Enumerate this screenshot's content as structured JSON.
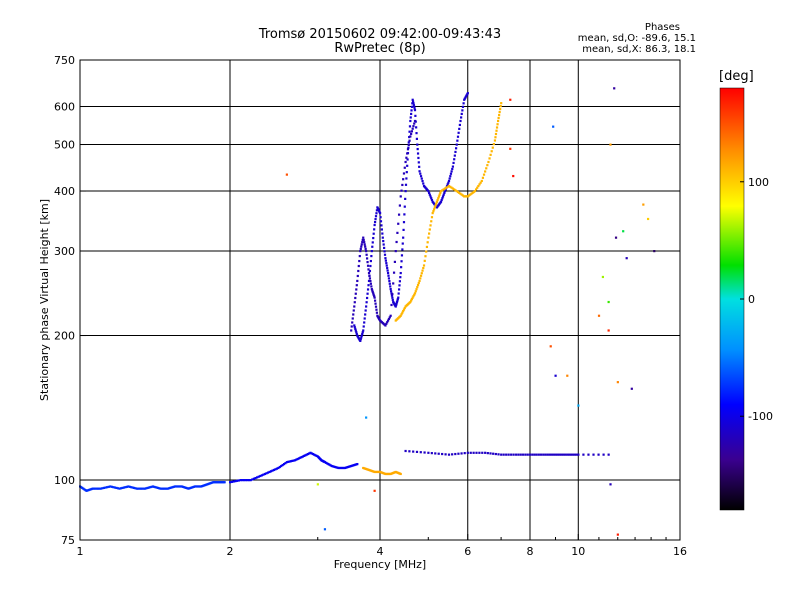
{
  "header": {
    "title_line1": "Tromsø 20150602 09:42:00-09:43:43",
    "title_line2": "RwPretec (8p)"
  },
  "stats": {
    "heading": "Phases",
    "o_line": "mean, sd,O: -89.6, 15.1",
    "x_line": "mean, sd,X:  86.3, 18.1"
  },
  "colorbar": {
    "unit": "[deg]",
    "ticks": [
      {
        "value": 100,
        "label": "100"
      },
      {
        "value": 0,
        "label": "0"
      },
      {
        "value": -100,
        "label": "-100"
      }
    ],
    "range": [
      -180,
      180
    ]
  },
  "chart_data": {
    "type": "scatter",
    "title": "Tromsø 20150602 09:42:00-09:43:43",
    "subtitle": "RwPretec (8p)",
    "xlabel": "Frequency [MHz]",
    "ylabel": "Stationary phase Virtual Height [km]",
    "xscale": "log",
    "yscale": "log",
    "xlim": [
      1,
      16
    ],
    "ylim": [
      75,
      750
    ],
    "xticks": [
      1,
      2,
      4,
      6,
      8,
      10,
      16
    ],
    "xtick_labels": [
      "1",
      "2",
      "4",
      "6",
      "8",
      "10",
      "16"
    ],
    "yticks": [
      75,
      100,
      200,
      300,
      400,
      500,
      600,
      750
    ],
    "ytick_labels": [
      "75",
      "100",
      "200",
      "300",
      "400",
      "500",
      "600",
      "750"
    ],
    "grid": true,
    "color_encoding": "phase [deg]",
    "traces": [
      {
        "phase": -75,
        "points": [
          [
            1.0,
            97
          ],
          [
            1.03,
            95
          ],
          [
            1.06,
            96
          ],
          [
            1.1,
            96
          ],
          [
            1.15,
            97
          ],
          [
            1.2,
            96
          ],
          [
            1.25,
            97
          ],
          [
            1.3,
            96
          ],
          [
            1.35,
            96
          ],
          [
            1.4,
            97
          ],
          [
            1.45,
            96
          ],
          [
            1.5,
            96
          ],
          [
            1.55,
            97
          ],
          [
            1.6,
            97
          ],
          [
            1.65,
            96
          ],
          [
            1.7,
            97
          ],
          [
            1.75,
            97
          ],
          [
            1.8,
            98
          ],
          [
            1.85,
            99
          ],
          [
            1.9,
            99
          ],
          [
            1.95,
            99
          ]
        ]
      },
      {
        "phase": -95,
        "points": [
          [
            2.0,
            99
          ],
          [
            2.1,
            100
          ],
          [
            2.2,
            100
          ],
          [
            2.3,
            102
          ],
          [
            2.4,
            104
          ],
          [
            2.5,
            106
          ],
          [
            2.6,
            109
          ],
          [
            2.7,
            110
          ],
          [
            2.8,
            112
          ],
          [
            2.9,
            114
          ],
          [
            3.0,
            112
          ],
          [
            3.05,
            110
          ],
          [
            3.1,
            109
          ],
          [
            3.2,
            107
          ],
          [
            3.3,
            106
          ],
          [
            3.4,
            106
          ],
          [
            3.5,
            107
          ],
          [
            3.6,
            108
          ]
        ]
      },
      {
        "phase": -110,
        "points": [
          [
            3.55,
            210
          ],
          [
            3.6,
            200
          ],
          [
            3.65,
            195
          ],
          [
            3.7,
            205
          ],
          [
            3.75,
            230
          ],
          [
            3.8,
            260
          ],
          [
            3.85,
            300
          ],
          [
            3.9,
            340
          ],
          [
            3.95,
            370
          ],
          [
            4.0,
            360
          ],
          [
            4.05,
            320
          ],
          [
            4.1,
            290
          ],
          [
            4.15,
            270
          ],
          [
            4.2,
            250
          ],
          [
            4.25,
            235
          ],
          [
            4.3,
            230
          ],
          [
            4.35,
            240
          ],
          [
            4.4,
            270
          ],
          [
            4.45,
            320
          ],
          [
            4.5,
            400
          ],
          [
            4.55,
            480
          ],
          [
            4.6,
            560
          ],
          [
            4.65,
            620
          ],
          [
            4.7,
            590
          ],
          [
            4.75,
            500
          ],
          [
            4.8,
            440
          ],
          [
            4.9,
            410
          ],
          [
            5.0,
            400
          ],
          [
            5.1,
            380
          ],
          [
            5.2,
            370
          ],
          [
            5.3,
            380
          ],
          [
            5.4,
            400
          ],
          [
            5.5,
            420
          ],
          [
            5.6,
            450
          ],
          [
            5.7,
            500
          ],
          [
            5.8,
            560
          ],
          [
            5.9,
            620
          ],
          [
            6.0,
            640
          ]
        ]
      },
      {
        "phase": -120,
        "points": [
          [
            3.5,
            205
          ],
          [
            3.55,
            230
          ],
          [
            3.6,
            260
          ],
          [
            3.65,
            300
          ],
          [
            3.7,
            320
          ],
          [
            3.75,
            300
          ],
          [
            3.8,
            270
          ],
          [
            3.85,
            250
          ],
          [
            3.9,
            240
          ],
          [
            3.95,
            220
          ],
          [
            4.0,
            215
          ],
          [
            4.1,
            210
          ],
          [
            4.2,
            220
          ],
          [
            4.3,
            300
          ],
          [
            4.4,
            390
          ],
          [
            4.5,
            460
          ],
          [
            4.6,
            520
          ],
          [
            4.7,
            560
          ]
        ]
      },
      {
        "phase": 110,
        "points": [
          [
            4.3,
            215
          ],
          [
            4.4,
            220
          ],
          [
            4.5,
            230
          ],
          [
            4.6,
            235
          ],
          [
            4.7,
            245
          ],
          [
            4.8,
            260
          ],
          [
            4.9,
            280
          ],
          [
            5.0,
            320
          ],
          [
            5.1,
            360
          ],
          [
            5.2,
            380
          ],
          [
            5.3,
            400
          ],
          [
            5.5,
            410
          ],
          [
            5.7,
            400
          ],
          [
            5.9,
            390
          ],
          [
            6.0,
            390
          ],
          [
            6.2,
            400
          ],
          [
            6.4,
            420
          ],
          [
            6.6,
            460
          ],
          [
            6.8,
            510
          ],
          [
            6.9,
            560
          ],
          [
            7.0,
            610
          ]
        ]
      },
      {
        "phase": 115,
        "points": [
          [
            3.7,
            106
          ],
          [
            3.8,
            105
          ],
          [
            3.9,
            104
          ],
          [
            4.0,
            104
          ],
          [
            4.1,
            103
          ],
          [
            4.2,
            103
          ],
          [
            4.3,
            104
          ],
          [
            4.4,
            103
          ]
        ]
      },
      {
        "phase": -115,
        "points": [
          [
            4.5,
            115
          ],
          [
            5.0,
            114
          ],
          [
            5.5,
            113
          ],
          [
            6.0,
            114
          ],
          [
            6.5,
            114
          ],
          [
            7.0,
            113
          ],
          [
            7.5,
            113
          ],
          [
            8.0,
            113
          ],
          [
            8.5,
            113
          ],
          [
            9.0,
            113
          ],
          [
            9.5,
            113
          ],
          [
            10.0,
            113
          ],
          [
            11.5,
            113
          ]
        ]
      }
    ],
    "scatter_points": [
      {
        "x": 2.6,
        "y": 433,
        "phase": 150
      },
      {
        "x": 3.0,
        "y": 98,
        "phase": 70
      },
      {
        "x": 3.1,
        "y": 79,
        "phase": -60
      },
      {
        "x": 3.9,
        "y": 95,
        "phase": 160
      },
      {
        "x": 3.75,
        "y": 135,
        "phase": -40
      },
      {
        "x": 7.3,
        "y": 620,
        "phase": 170
      },
      {
        "x": 7.3,
        "y": 490,
        "phase": 160
      },
      {
        "x": 7.4,
        "y": 430,
        "phase": 175
      },
      {
        "x": 8.9,
        "y": 545,
        "phase": -60
      },
      {
        "x": 8.8,
        "y": 190,
        "phase": 150
      },
      {
        "x": 9.0,
        "y": 165,
        "phase": -110
      },
      {
        "x": 9.5,
        "y": 165,
        "phase": 130
      },
      {
        "x": 10.0,
        "y": 143,
        "phase": -30
      },
      {
        "x": 11.8,
        "y": 655,
        "phase": -130
      },
      {
        "x": 11.6,
        "y": 500,
        "phase": 120
      },
      {
        "x": 11.9,
        "y": 320,
        "phase": -140
      },
      {
        "x": 12.3,
        "y": 330,
        "phase": 20
      },
      {
        "x": 12.5,
        "y": 290,
        "phase": -120
      },
      {
        "x": 11.2,
        "y": 265,
        "phase": 60
      },
      {
        "x": 11.5,
        "y": 235,
        "phase": 40
      },
      {
        "x": 11.0,
        "y": 220,
        "phase": 140
      },
      {
        "x": 11.5,
        "y": 205,
        "phase": 165
      },
      {
        "x": 12.0,
        "y": 160,
        "phase": 130
      },
      {
        "x": 12.8,
        "y": 155,
        "phase": -130
      },
      {
        "x": 11.6,
        "y": 98,
        "phase": -120
      },
      {
        "x": 12.0,
        "y": 77,
        "phase": 170
      },
      {
        "x": 13.5,
        "y": 375,
        "phase": 120
      },
      {
        "x": 14.2,
        "y": 300,
        "phase": -150
      },
      {
        "x": 13.8,
        "y": 350,
        "phase": 100
      }
    ]
  }
}
